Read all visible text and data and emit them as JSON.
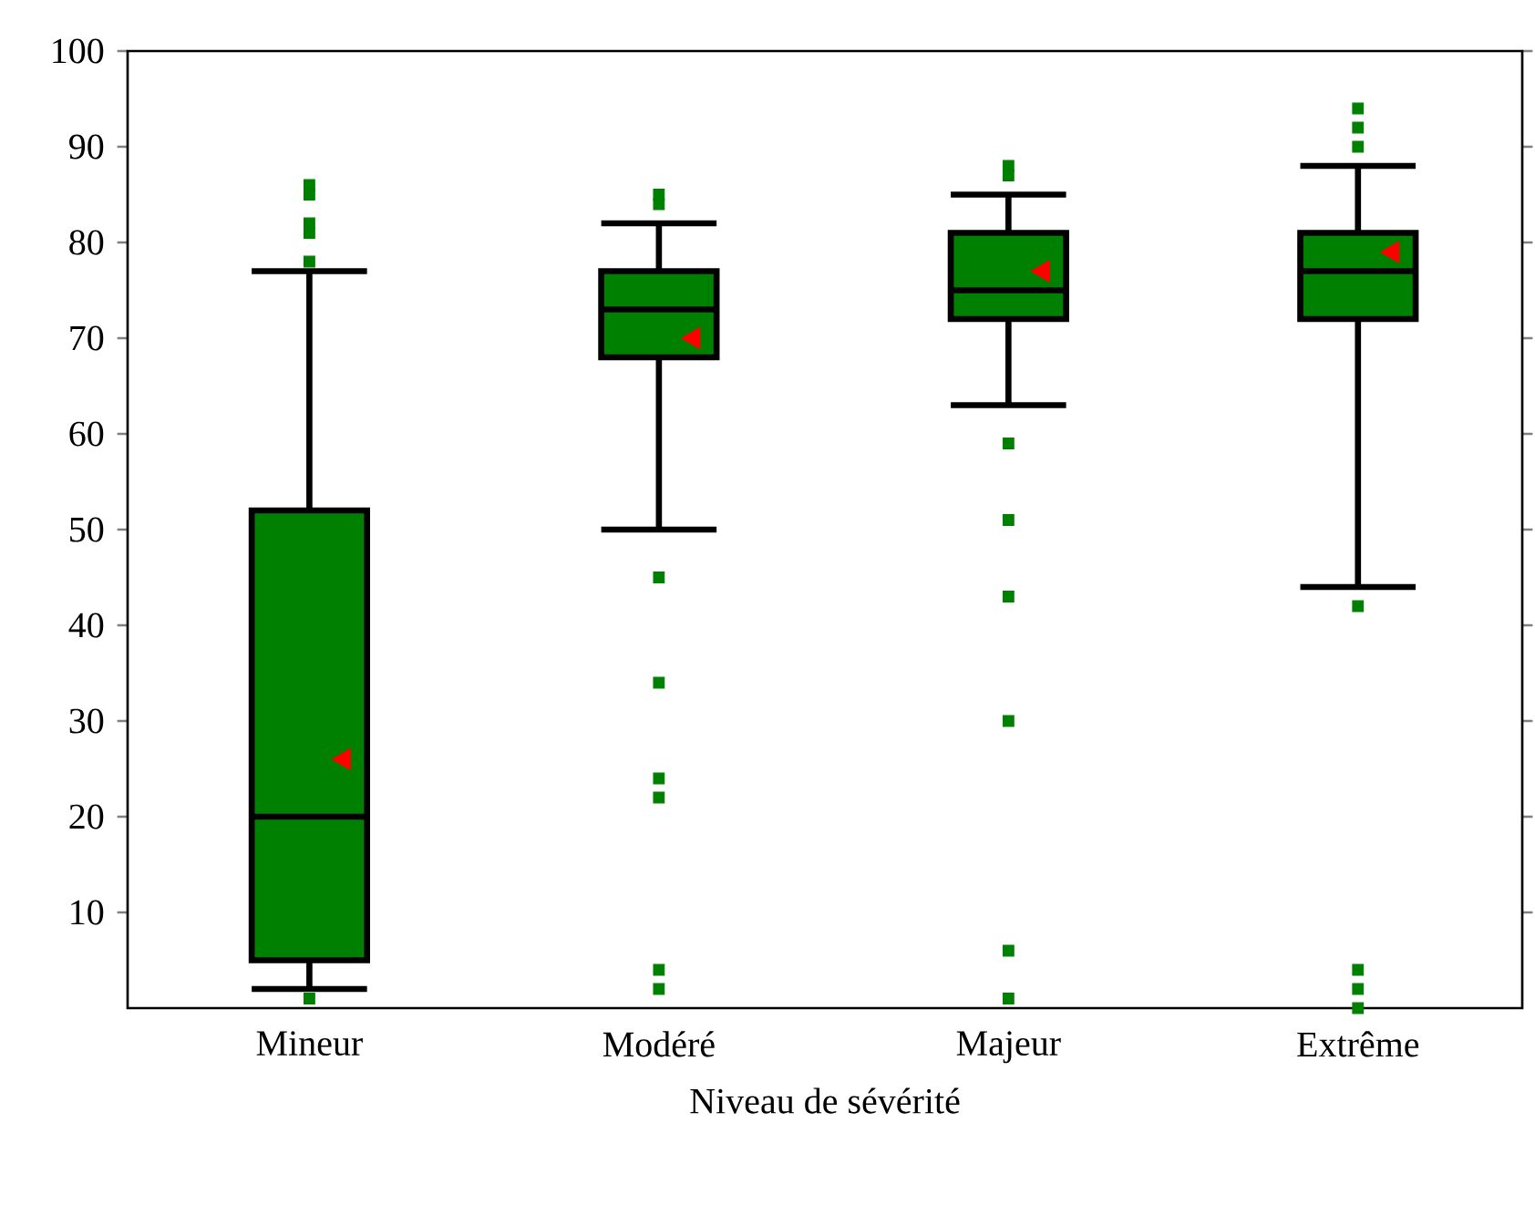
{
  "chart_data": {
    "type": "box",
    "xlabel": "Niveau de sévérité",
    "categories": [
      "Mineur",
      "Modéré",
      "Majeur",
      "Extrême"
    ],
    "color": "#008000",
    "boxes": [
      {
        "low": 2,
        "q1": 5,
        "median": 20,
        "q3": 52,
        "high": 77,
        "mean": 26,
        "outliers": [
          86,
          85,
          82,
          81,
          78,
          1
        ]
      },
      {
        "low": 50,
        "q1": 68,
        "median": 73,
        "q3": 77,
        "high": 82,
        "mean": 70,
        "outliers": [
          85,
          84,
          45,
          34,
          24,
          22,
          4,
          2
        ]
      },
      {
        "low": 63,
        "q1": 72,
        "median": 75,
        "q3": 81,
        "high": 85,
        "mean": 77,
        "outliers": [
          88,
          87,
          59,
          51,
          43,
          30,
          6,
          1
        ]
      },
      {
        "low": 44,
        "q1": 72,
        "median": 77,
        "q3": 81,
        "high": 88,
        "mean": 79,
        "outliers": [
          94,
          92,
          90,
          42,
          4,
          2,
          0
        ]
      }
    ],
    "ylim": [
      0,
      100
    ],
    "yticks": [
      10,
      20,
      30,
      40,
      50,
      60,
      70,
      80,
      90,
      100
    ],
    "grid": false
  }
}
